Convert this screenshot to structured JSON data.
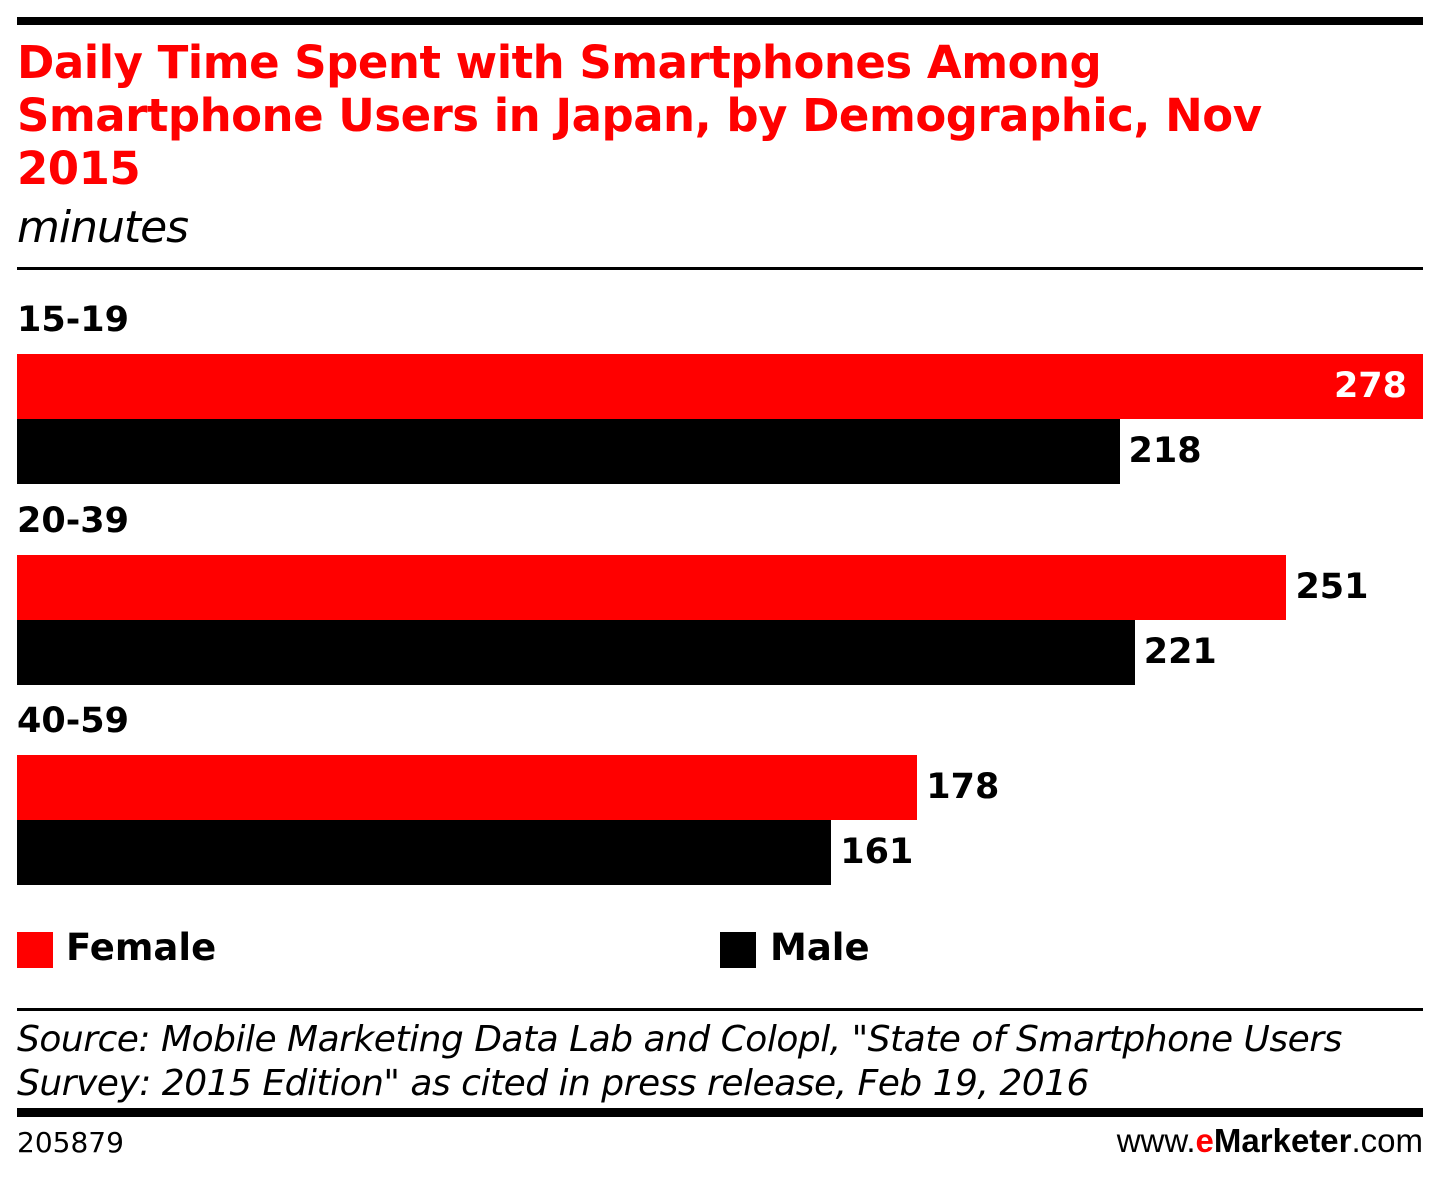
{
  "chart_data": {
    "type": "bar",
    "orientation": "horizontal",
    "title": "Daily Time Spent with Smartphones Among Smartphone Users in Japan, by Demographic, Nov 2015",
    "subtitle": "minutes",
    "categories": [
      "15-19",
      "20-39",
      "40-59"
    ],
    "series": [
      {
        "name": "Female",
        "color": "#ff0000",
        "values": [
          278,
          251,
          178
        ]
      },
      {
        "name": "Male",
        "color": "#000000",
        "values": [
          218,
          221,
          161
        ]
      }
    ],
    "xlim": [
      0,
      278
    ],
    "grid": false,
    "legend_placement": "bottom"
  },
  "source": "Source: Mobile Marketing Data Lab and Colopl, \"State of Smartphone Users Survey: 2015 Edition\" as cited in press release, Feb 19, 2016",
  "chart_id": "205879",
  "logo": {
    "prefix": "www.",
    "e": "e",
    "brand": "Marketer",
    "suffix": ".com"
  }
}
